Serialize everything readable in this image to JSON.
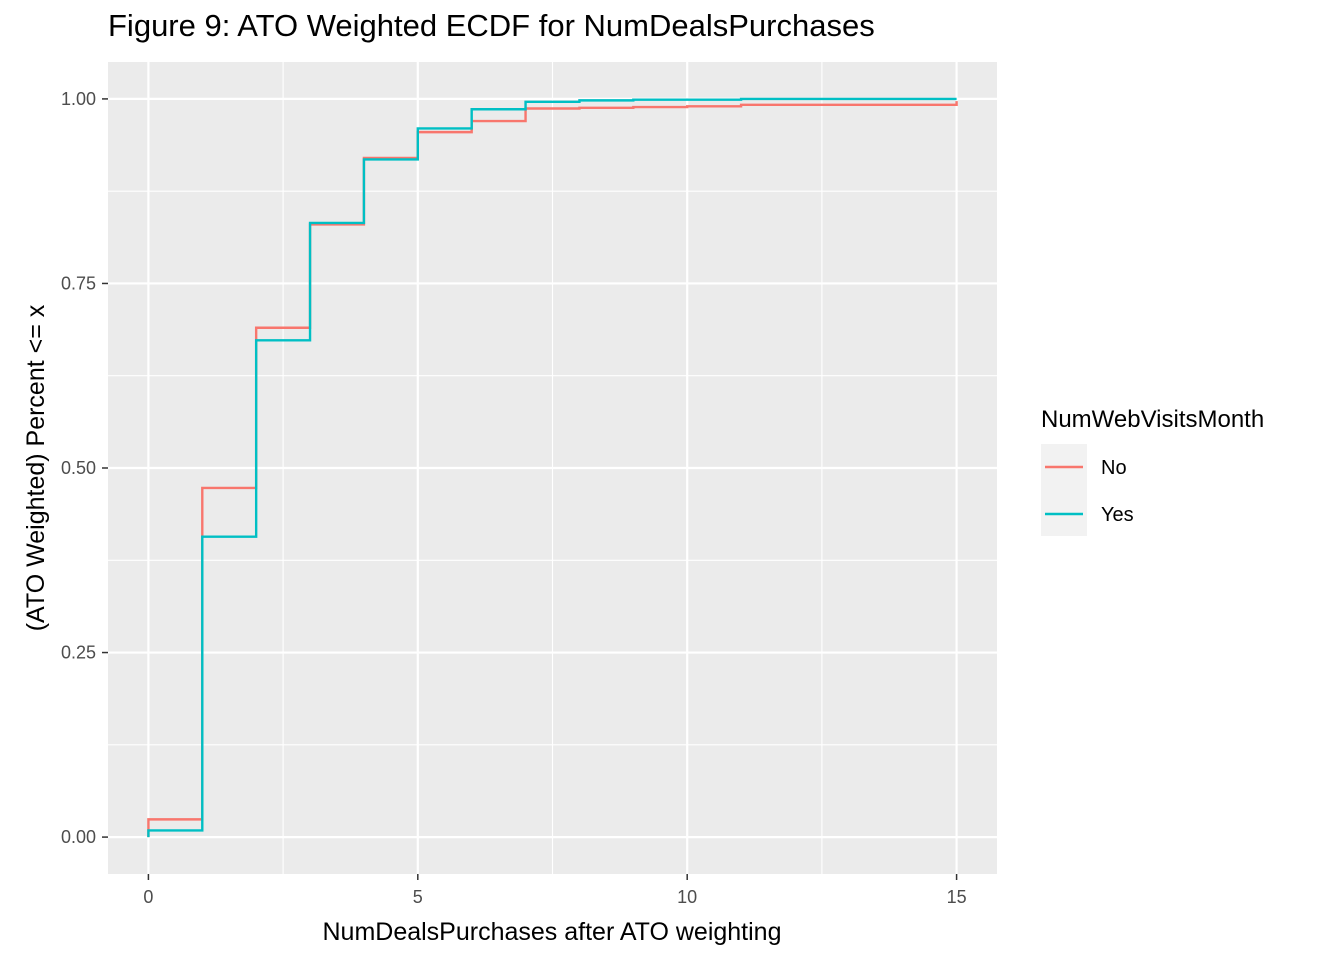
{
  "chart_data": {
    "type": "line",
    "step": true,
    "title": "Figure 9: ATO Weighted ECDF for NumDealsPurchases",
    "xlabel": "NumDealsPurchases after ATO weighting",
    "ylabel": "(ATO Weighted) Percent <= x",
    "xlim": [
      -0.75,
      15.75
    ],
    "ylim": [
      -0.05,
      1.05
    ],
    "x_ticks": [
      0,
      5,
      10,
      15
    ],
    "x_tick_labels": [
      "0",
      "5",
      "10",
      "15"
    ],
    "y_ticks": [
      0,
      0.25,
      0.5,
      0.75,
      1.0
    ],
    "y_tick_labels": [
      "0.00",
      "0.25",
      "0.50",
      "0.75",
      "1.00"
    ],
    "grid": true,
    "legend_title": "NumWebVisitsMonth",
    "legend_position": "right",
    "series": [
      {
        "name": "No",
        "color": "#F8766D",
        "x": [
          0,
          1,
          2,
          3,
          4,
          5,
          6,
          7,
          8,
          9,
          10,
          11,
          15
        ],
        "y": [
          0.024,
          0.473,
          0.69,
          0.83,
          0.92,
          0.955,
          0.97,
          0.987,
          0.988,
          0.989,
          0.99,
          0.992,
          0.997
        ]
      },
      {
        "name": "Yes",
        "color": "#00BFC4",
        "x": [
          0,
          1,
          2,
          3,
          4,
          5,
          6,
          7,
          8,
          9,
          11,
          15
        ],
        "y": [
          0.009,
          0.407,
          0.673,
          0.832,
          0.918,
          0.96,
          0.986,
          0.996,
          0.998,
          0.999,
          1.0,
          1.0
        ]
      }
    ]
  }
}
